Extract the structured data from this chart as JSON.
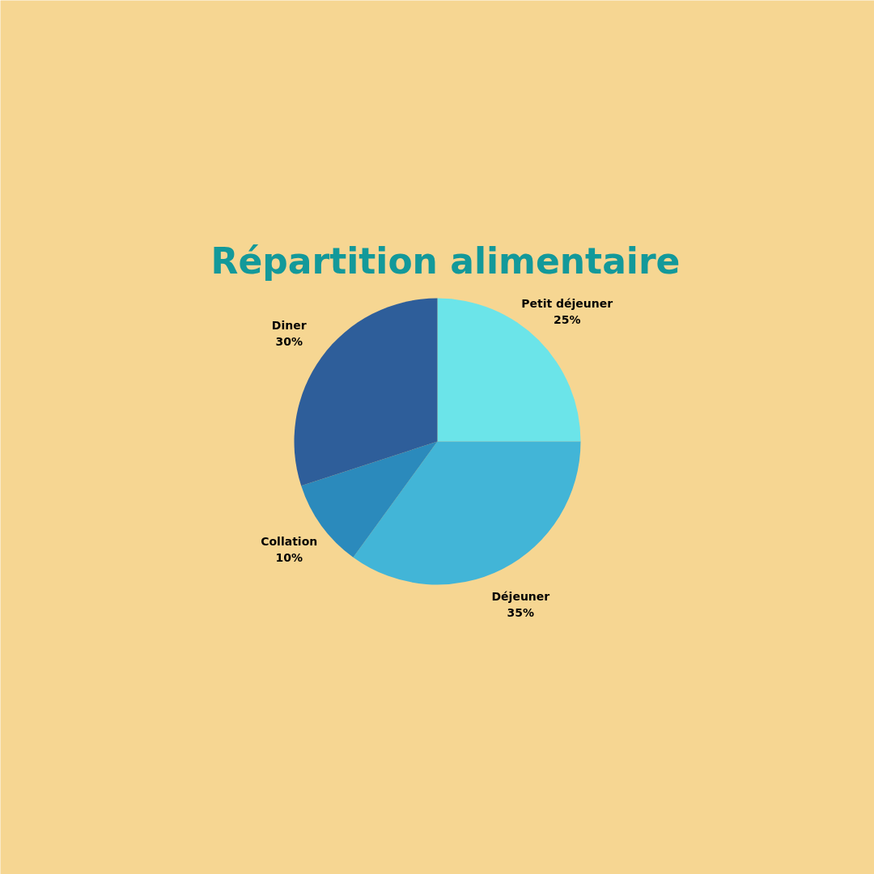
{
  "chart_data": {
    "type": "pie",
    "title": "Répartition alimentaire",
    "categories": [
      "Petit déjeuner",
      "Déjeuner",
      "Collation",
      "Diner"
    ],
    "values": [
      25,
      35,
      10,
      30
    ],
    "value_labels": [
      "25%",
      "35%",
      "10%",
      "30%"
    ],
    "colors": [
      "#6be4e9",
      "#42b5d7",
      "#2b8abc",
      "#2e5e9a"
    ]
  }
}
